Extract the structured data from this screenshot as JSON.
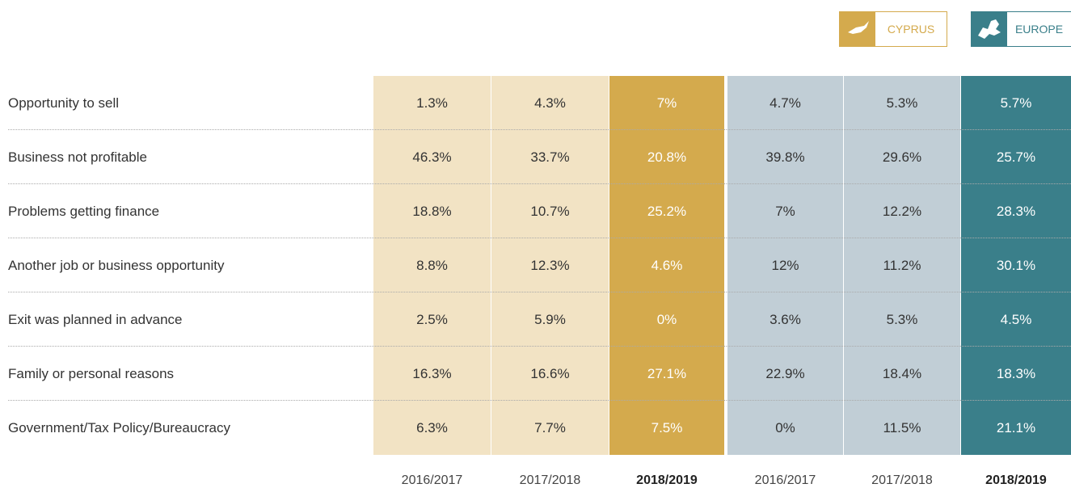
{
  "legend": {
    "cyprus": "CYPRUS",
    "europe": "EUROPE"
  },
  "table": {
    "columns": [
      "2016/2017",
      "2017/2018",
      "2018/2019",
      "2016/2017",
      "2017/2018",
      "2018/2019"
    ],
    "rows": [
      {
        "label": "Opportunity to sell",
        "cells": [
          "1.3%",
          "4.3%",
          "7%",
          "4.7%",
          "5.3%",
          "5.7%"
        ]
      },
      {
        "label": "Business not profitable",
        "cells": [
          "46.3%",
          "33.7%",
          "20.8%",
          "39.8%",
          "29.6%",
          "25.7%"
        ]
      },
      {
        "label": "Problems getting finance",
        "cells": [
          "18.8%",
          "10.7%",
          "25.2%",
          "7%",
          "12.2%",
          "28.3%"
        ]
      },
      {
        "label": "Another job or business opportunity",
        "cells": [
          "8.8%",
          "12.3%",
          "4.6%",
          "12%",
          "11.2%",
          "30.1%"
        ]
      },
      {
        "label": "Exit was planned in advance",
        "cells": [
          "2.5%",
          "5.9%",
          "0%",
          "3.6%",
          "5.3%",
          "4.5%"
        ]
      },
      {
        "label": "Family or personal reasons",
        "cells": [
          "16.3%",
          "16.6%",
          "27.1%",
          "22.9%",
          "18.4%",
          "18.3%"
        ]
      },
      {
        "label": "Government/Tax Policy/Bureaucracy",
        "cells": [
          "6.3%",
          "7.7%",
          "7.5%",
          "0%",
          "11.5%",
          "21.1%"
        ]
      }
    ]
  }
}
